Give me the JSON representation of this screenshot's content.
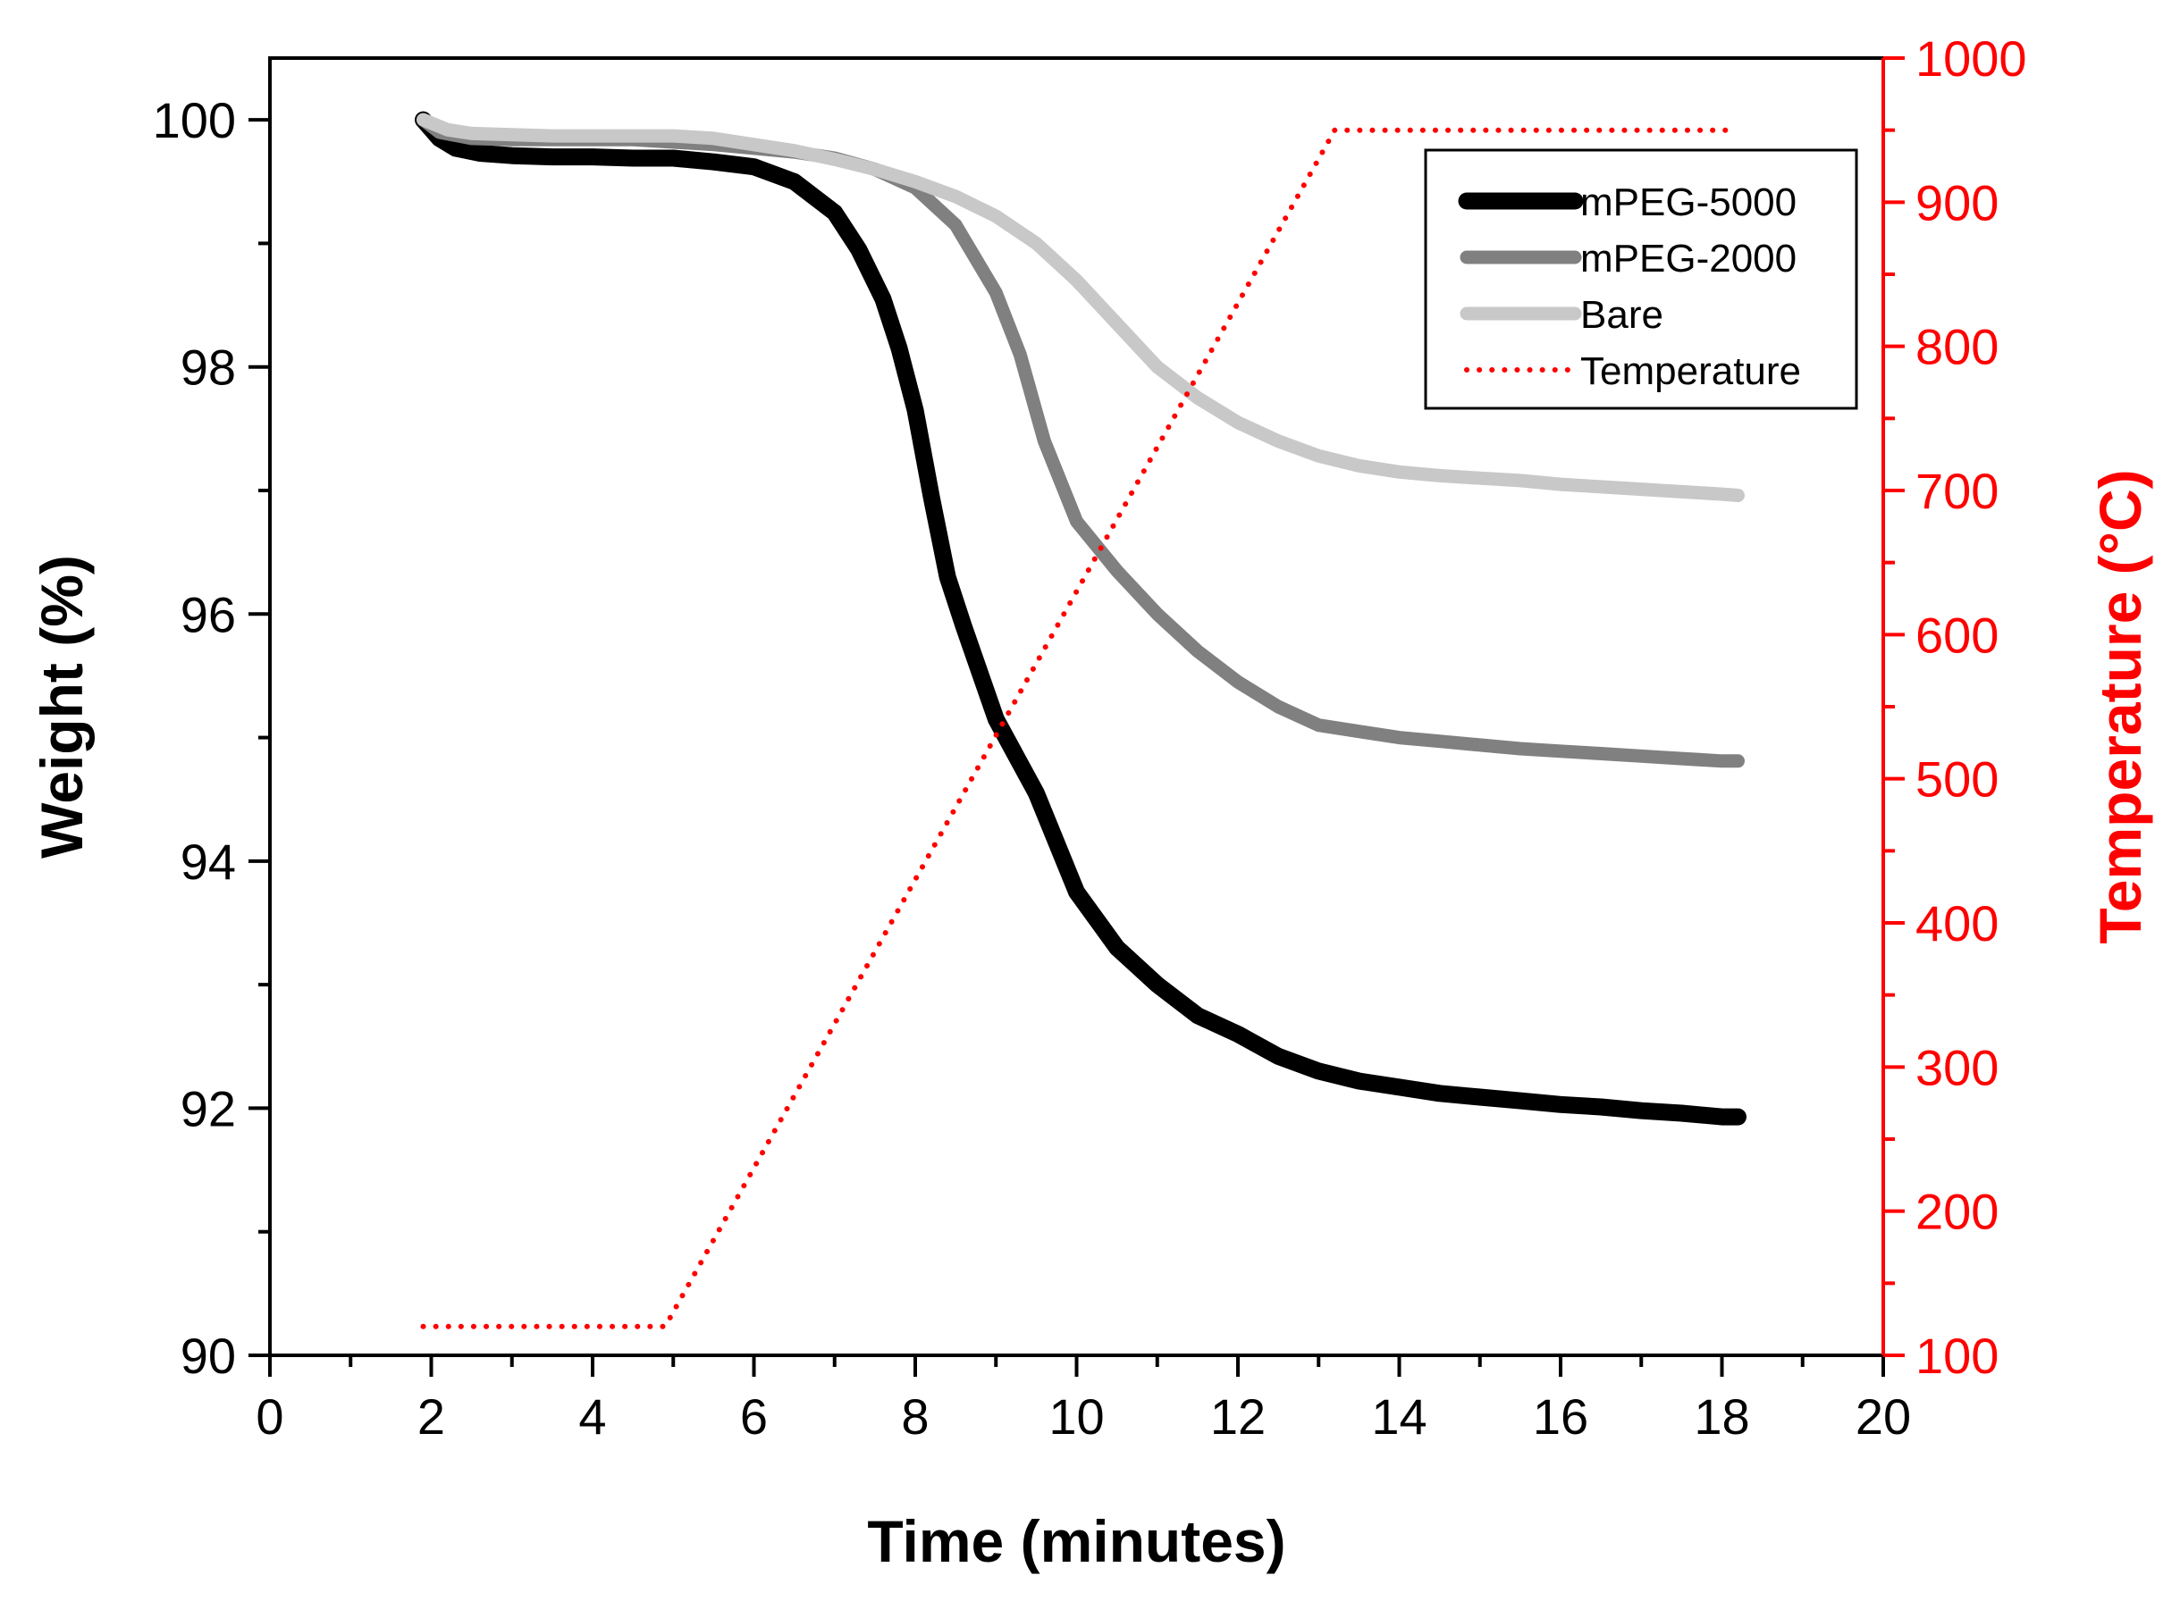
{
  "chart_data": {
    "type": "line",
    "title": "",
    "xlabel": "Time (minutes)",
    "ylabel": "Weight (%)",
    "y2label": "Temperature (°C)",
    "xlim": [
      0,
      20
    ],
    "ylim": [
      90,
      100.5
    ],
    "y2lim": [
      100,
      1000
    ],
    "xticks": [
      0,
      2,
      4,
      6,
      8,
      10,
      12,
      14,
      16,
      18,
      20
    ],
    "yticks": [
      90,
      92,
      94,
      96,
      98,
      100
    ],
    "y2ticks": [
      100,
      200,
      300,
      400,
      500,
      600,
      700,
      800,
      900,
      1000
    ],
    "grid": false,
    "legend_position": "top-right",
    "colors": {
      "axis": "#000000",
      "temperature_axis": "#ff0000"
    },
    "series": [
      {
        "name": "mPEG-5000",
        "axis": "left",
        "color": "#000000",
        "style": "solid",
        "x": [
          1.9,
          2.1,
          2.3,
          2.6,
          3.0,
          3.5,
          4.0,
          4.5,
          5.0,
          5.5,
          6.0,
          6.5,
          7.0,
          7.3,
          7.6,
          7.8,
          8.0,
          8.2,
          8.4,
          8.6,
          9.0,
          9.5,
          10.0,
          10.5,
          11.0,
          11.5,
          12.0,
          12.5,
          13.0,
          13.5,
          14.0,
          14.5,
          15.0,
          15.5,
          16.0,
          16.5,
          17.0,
          17.5,
          18.0,
          18.2
        ],
        "y": [
          100.0,
          99.85,
          99.77,
          99.73,
          99.71,
          99.7,
          99.7,
          99.69,
          99.69,
          99.66,
          99.62,
          99.5,
          99.25,
          98.95,
          98.55,
          98.15,
          97.65,
          96.95,
          96.3,
          95.9,
          95.15,
          94.55,
          93.75,
          93.3,
          93.0,
          92.75,
          92.6,
          92.42,
          92.3,
          92.22,
          92.17,
          92.12,
          92.09,
          92.06,
          92.03,
          92.01,
          91.98,
          91.96,
          91.93,
          91.93
        ]
      },
      {
        "name": "mPEG-2000",
        "axis": "left",
        "color": "#808080",
        "style": "solid",
        "x": [
          1.9,
          2.1,
          2.5,
          3.0,
          3.5,
          4.0,
          4.5,
          5.0,
          5.5,
          6.0,
          6.5,
          7.0,
          7.5,
          8.0,
          8.5,
          9.0,
          9.3,
          9.6,
          10.0,
          10.5,
          11.0,
          11.5,
          12.0,
          12.5,
          13.0,
          13.5,
          14.0,
          14.5,
          15.0,
          15.5,
          16.0,
          16.5,
          17.0,
          17.5,
          18.0,
          18.2
        ],
        "y": [
          100.0,
          99.9,
          99.85,
          99.84,
          99.84,
          99.84,
          99.84,
          99.82,
          99.8,
          99.77,
          99.74,
          99.69,
          99.6,
          99.45,
          99.15,
          98.6,
          98.1,
          97.4,
          96.75,
          96.35,
          96.0,
          95.7,
          95.45,
          95.25,
          95.1,
          95.05,
          95.0,
          94.97,
          94.94,
          94.91,
          94.89,
          94.87,
          94.85,
          94.83,
          94.81,
          94.81
        ]
      },
      {
        "name": "Bare",
        "axis": "left",
        "color": "#c8c8c8",
        "style": "solid",
        "x": [
          1.9,
          2.2,
          2.5,
          3.0,
          3.5,
          4.0,
          4.5,
          5.0,
          5.5,
          6.0,
          6.5,
          7.0,
          7.5,
          8.0,
          8.5,
          9.0,
          9.5,
          10.0,
          10.5,
          11.0,
          11.5,
          12.0,
          12.5,
          13.0,
          13.5,
          14.0,
          14.5,
          15.0,
          15.5,
          16.0,
          16.5,
          17.0,
          17.5,
          18.0,
          18.2
        ],
        "y": [
          100.0,
          99.92,
          99.89,
          99.88,
          99.87,
          99.87,
          99.87,
          99.87,
          99.85,
          99.8,
          99.75,
          99.68,
          99.6,
          99.5,
          99.38,
          99.22,
          99.0,
          98.7,
          98.35,
          98.0,
          97.75,
          97.55,
          97.4,
          97.28,
          97.2,
          97.15,
          97.12,
          97.1,
          97.08,
          97.05,
          97.03,
          97.01,
          96.99,
          96.97,
          96.96
        ]
      },
      {
        "name": "Temperature",
        "axis": "right",
        "color": "#ff0000",
        "style": "dotted",
        "x": [
          1.9,
          4.9,
          13.2,
          18.1
        ],
        "y": [
          120,
          120,
          950,
          950
        ]
      }
    ]
  }
}
